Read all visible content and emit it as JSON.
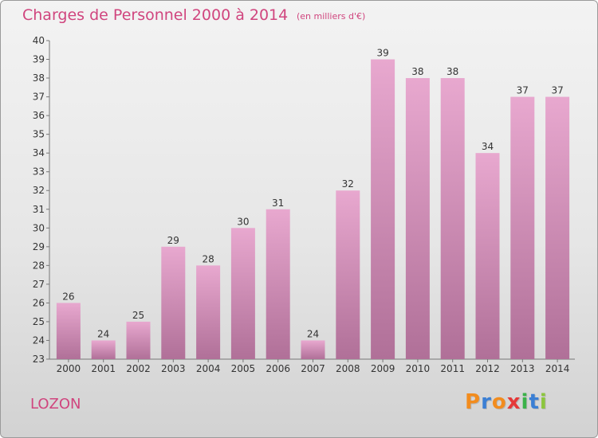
{
  "chart_data": {
    "type": "bar",
    "title": "Charges de Personnel 2000 à 2014",
    "subtitle": "(en milliers d'€)",
    "categories": [
      "2000",
      "2001",
      "2002",
      "2003",
      "2004",
      "2005",
      "2006",
      "2007",
      "2008",
      "2009",
      "2010",
      "2011",
      "2012",
      "2013",
      "2014"
    ],
    "values": [
      26,
      24,
      25,
      29,
      28,
      30,
      31,
      24,
      32,
      39,
      38,
      38,
      34,
      37,
      37
    ],
    "ylim": [
      23,
      40
    ],
    "yticks": [
      23,
      24,
      25,
      26,
      27,
      28,
      29,
      30,
      31,
      32,
      33,
      34,
      35,
      36,
      37,
      38,
      39,
      40
    ],
    "grid": false,
    "bar_color_top": "#e8a8cf",
    "bar_color_bottom": "#b07098"
  },
  "place_name": "LOZON",
  "logo": {
    "letters": [
      {
        "char": "P",
        "color": "#f28c1e"
      },
      {
        "char": "r",
        "color": "#3b7fd4"
      },
      {
        "char": "o",
        "color": "#f28c1e"
      },
      {
        "char": "x",
        "color": "#e53838"
      },
      {
        "char": "i",
        "color": "#3bb24a"
      },
      {
        "char": "t",
        "color": "#3b7fd4"
      },
      {
        "char": "i",
        "color": "#8cc63e"
      }
    ]
  }
}
